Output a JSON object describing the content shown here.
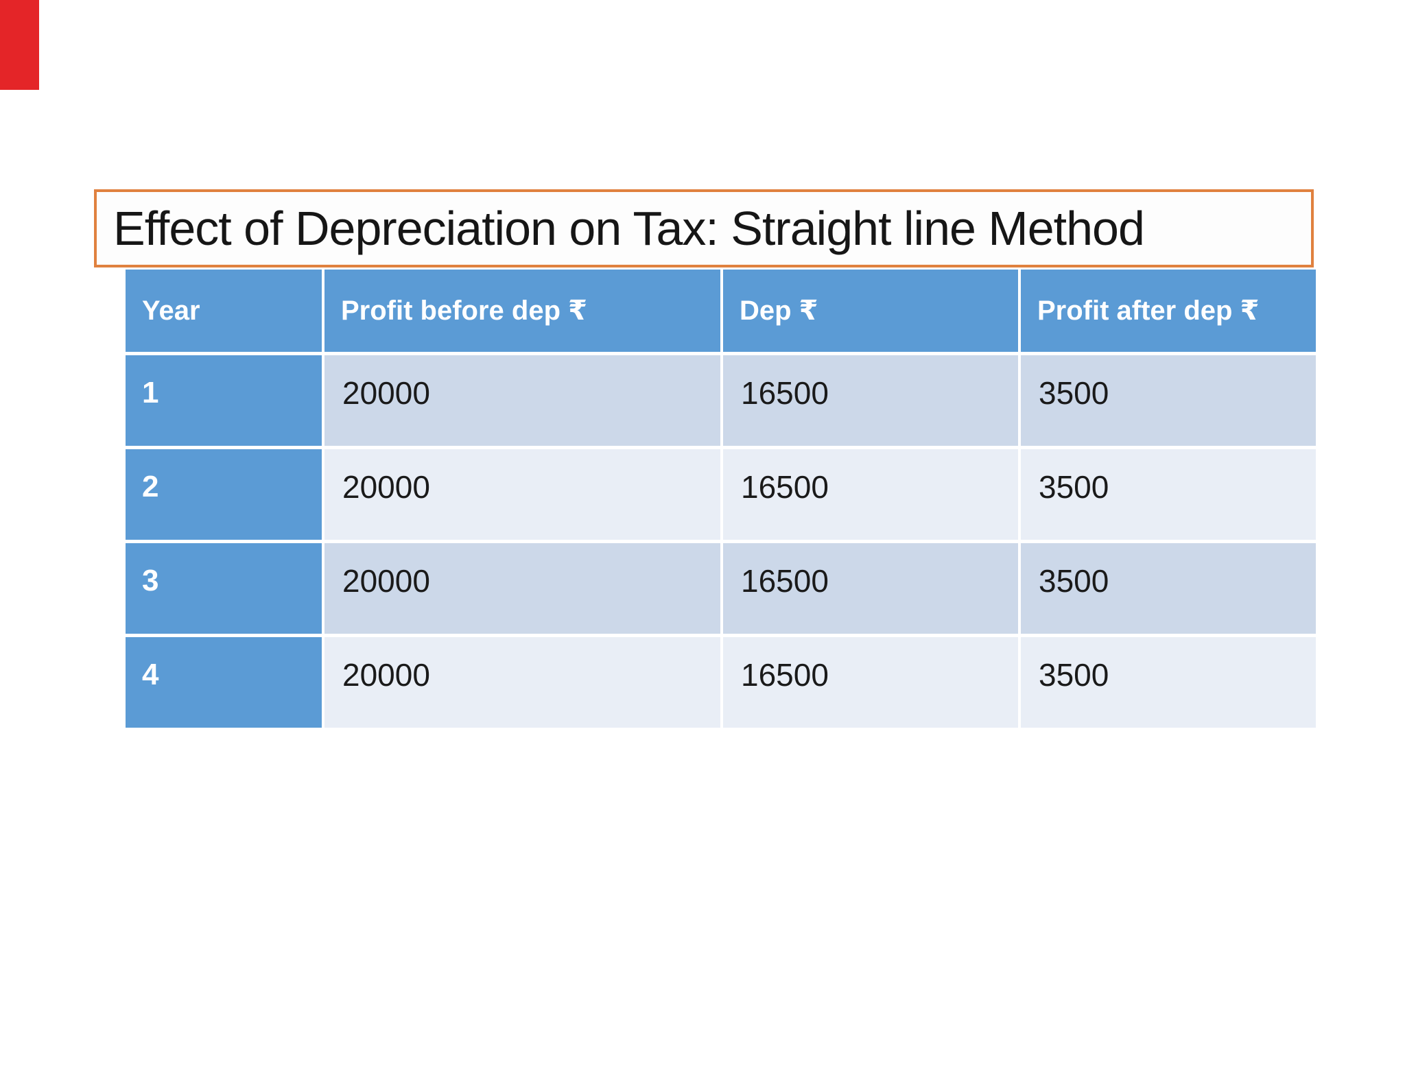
{
  "slide": {
    "title": "Effect of Depreciation on Tax: Straight line Method",
    "accent_bar_color": "#e42528",
    "title_border_color": "#e0813f"
  },
  "table": {
    "header_bg_color": "#5b9bd5",
    "band_colors": [
      "#ccd8e9",
      "#e9eef6"
    ],
    "columns": [
      "Year",
      "Profit before dep ₹",
      "Dep ₹",
      "Profit after dep ₹"
    ],
    "rows": [
      [
        "1",
        "20000",
        "16500",
        "3500"
      ],
      [
        "2",
        "20000",
        "16500",
        "3500"
      ],
      [
        "3",
        "20000",
        "16500",
        "3500"
      ],
      [
        "4",
        "20000",
        "16500",
        "3500"
      ]
    ]
  },
  "chart_data": {
    "type": "table",
    "title": "Effect of Depreciation on Tax: Straight line Method",
    "columns": [
      "Year",
      "Profit before dep ₹",
      "Dep ₹",
      "Profit after dep ₹"
    ],
    "rows": [
      [
        1,
        20000,
        16500,
        3500
      ],
      [
        2,
        20000,
        16500,
        3500
      ],
      [
        3,
        20000,
        16500,
        3500
      ],
      [
        4,
        20000,
        16500,
        3500
      ]
    ]
  }
}
